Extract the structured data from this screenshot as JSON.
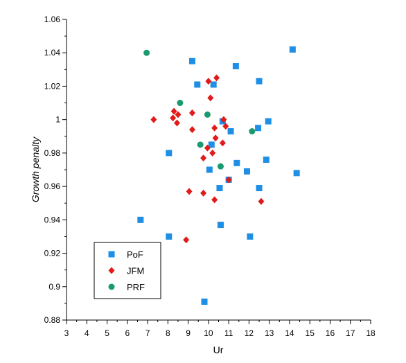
{
  "chart_data": {
    "type": "scatter",
    "title": "",
    "xlabel": "Ur",
    "ylabel": "Growth penalty",
    "xlim": [
      3,
      18
    ],
    "ylim": [
      0.88,
      1.06
    ],
    "xticks": [
      3,
      4,
      5,
      6,
      7,
      8,
      9,
      10,
      11,
      12,
      13,
      14,
      15,
      16,
      17,
      18
    ],
    "yticks": [
      "0.88",
      "0.9",
      "0.92",
      "0.94",
      "0.96",
      "0.98",
      "1",
      "1.02",
      "1.04",
      "1.06"
    ],
    "grid": false,
    "legend_position": "bottom-left",
    "series": [
      {
        "name": "PoF",
        "marker": "square",
        "color": "#1f8fe6",
        "points": [
          [
            6.65,
            0.94
          ],
          [
            8.05,
            0.98
          ],
          [
            8.05,
            0.93
          ],
          [
            9.2,
            1.035
          ],
          [
            9.45,
            1.021
          ],
          [
            9.8,
            0.891
          ],
          [
            10.05,
            0.97
          ],
          [
            10.15,
            0.985
          ],
          [
            10.25,
            1.021
          ],
          [
            10.55,
            0.959
          ],
          [
            10.6,
            0.937
          ],
          [
            10.7,
            0.999
          ],
          [
            11.0,
            0.964
          ],
          [
            11.1,
            0.993
          ],
          [
            11.35,
            1.032
          ],
          [
            11.4,
            0.974
          ],
          [
            11.9,
            0.969
          ],
          [
            12.05,
            0.93
          ],
          [
            12.45,
            0.995
          ],
          [
            12.5,
            1.023
          ],
          [
            12.5,
            0.959
          ],
          [
            12.85,
            0.976
          ],
          [
            12.95,
            0.999
          ],
          [
            14.15,
            1.042
          ],
          [
            14.35,
            0.968
          ]
        ]
      },
      {
        "name": "JFM",
        "marker": "diamond",
        "color": "#e11a1a",
        "points": [
          [
            7.3,
            1.0
          ],
          [
            8.25,
            1.001
          ],
          [
            8.3,
            1.005
          ],
          [
            8.45,
            0.998
          ],
          [
            8.5,
            1.003
          ],
          [
            8.9,
            0.928
          ],
          [
            9.05,
            0.957
          ],
          [
            9.2,
            1.004
          ],
          [
            9.2,
            0.994
          ],
          [
            9.75,
            0.977
          ],
          [
            9.75,
            0.956
          ],
          [
            9.95,
            0.983
          ],
          [
            10.0,
            1.023
          ],
          [
            10.1,
            1.013
          ],
          [
            10.2,
            0.98
          ],
          [
            10.3,
            0.952
          ],
          [
            10.3,
            0.995
          ],
          [
            10.35,
            0.989
          ],
          [
            10.4,
            1.025
          ],
          [
            10.7,
            0.986
          ],
          [
            10.75,
            1.0
          ],
          [
            10.85,
            0.996
          ],
          [
            11.0,
            0.964
          ],
          [
            12.6,
            0.951
          ]
        ]
      },
      {
        "name": "PRF",
        "marker": "circle",
        "color": "#1a9a6e",
        "points": [
          [
            6.95,
            1.04
          ],
          [
            8.6,
            1.01
          ],
          [
            9.6,
            0.985
          ],
          [
            9.95,
            1.003
          ],
          [
            10.6,
            0.972
          ],
          [
            12.15,
            0.993
          ]
        ]
      }
    ]
  }
}
